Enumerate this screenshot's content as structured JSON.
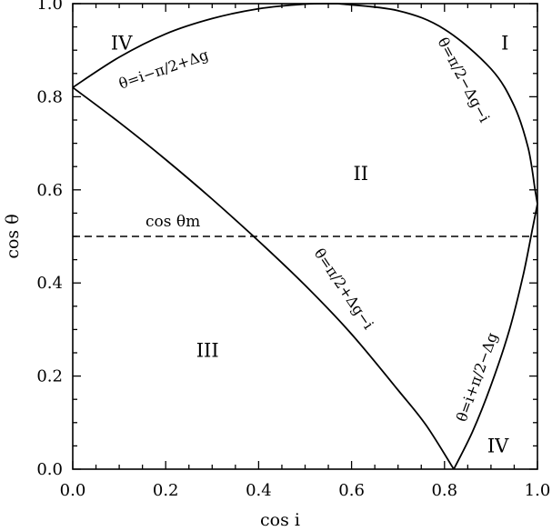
{
  "chart_data": {
    "type": "line",
    "xlabel": "cos i",
    "ylabel": "cos θ",
    "xlim": [
      0.0,
      1.0
    ],
    "ylim": [
      0.0,
      1.0
    ],
    "x_ticks": [
      "0.0",
      "0.2",
      "0.4",
      "0.6",
      "0.8",
      "1.0"
    ],
    "y_ticks": [
      "0.0",
      "0.2",
      "0.4",
      "0.6",
      "0.8",
      "1.0"
    ],
    "grid": false,
    "curves": [
      {
        "label": "θ=i−π/2+Δg",
        "points": [
          [
            0.0,
            0.82
          ],
          [
            0.1,
            0.885
          ],
          [
            0.2,
            0.935
          ],
          [
            0.3,
            0.968
          ],
          [
            0.4,
            0.989
          ],
          [
            0.5,
            0.999
          ],
          [
            0.57,
            1.0
          ]
        ]
      },
      {
        "label": "θ=π/2−Δg−i",
        "points": [
          [
            0.57,
            1.0
          ],
          [
            0.7,
            0.985
          ],
          [
            0.8,
            0.945
          ],
          [
            0.9,
            0.86
          ],
          [
            0.95,
            0.78
          ],
          [
            0.98,
            0.69
          ],
          [
            0.995,
            0.6
          ],
          [
            1.0,
            0.57
          ]
        ]
      },
      {
        "label": "θ=π/2+Δg−i",
        "points": [
          [
            0.0,
            0.82
          ],
          [
            0.1,
            0.745
          ],
          [
            0.2,
            0.665
          ],
          [
            0.3,
            0.58
          ],
          [
            0.4,
            0.49
          ],
          [
            0.5,
            0.395
          ],
          [
            0.6,
            0.29
          ],
          [
            0.7,
            0.17
          ],
          [
            0.76,
            0.095
          ],
          [
            0.82,
            0.0
          ]
        ]
      },
      {
        "label": "θ=i+π/2−Δg",
        "points": [
          [
            0.82,
            0.0
          ],
          [
            0.86,
            0.08
          ],
          [
            0.9,
            0.18
          ],
          [
            0.94,
            0.3
          ],
          [
            0.97,
            0.42
          ],
          [
            0.99,
            0.52
          ],
          [
            1.0,
            0.57
          ]
        ]
      }
    ],
    "hline": {
      "y": 0.5,
      "style": "dashed",
      "label": "cos θm"
    },
    "regions": [
      {
        "label": "I",
        "at": [
          0.93,
          0.915
        ]
      },
      {
        "label": "II",
        "at": [
          0.62,
          0.635
        ]
      },
      {
        "label": "III",
        "at": [
          0.29,
          0.255
        ]
      },
      {
        "label": "IV",
        "at": [
          0.105,
          0.915
        ]
      },
      {
        "label": "IV",
        "at": [
          0.915,
          0.05
        ]
      }
    ]
  }
}
